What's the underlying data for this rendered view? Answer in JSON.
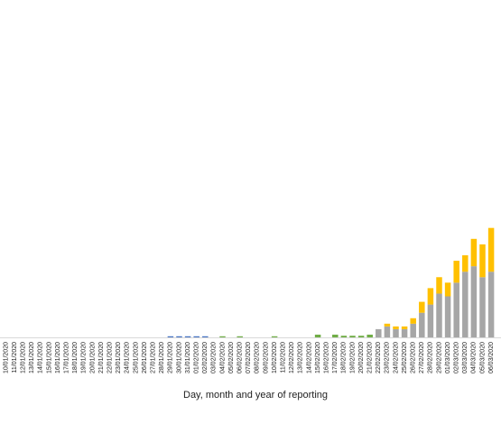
{
  "chart_data": {
    "type": "bar",
    "stacked": true,
    "xlabel": "Day, month and year of reporting",
    "ylabel": "",
    "ylim": [
      0,
      60
    ],
    "grid": false,
    "legend": "none",
    "categories": [
      "10/01/2020",
      "11/01/2020",
      "12/01/2020",
      "13/01/2020",
      "14/01/2020",
      "15/01/2020",
      "16/01/2020",
      "17/01/2020",
      "18/01/2020",
      "19/01/2020",
      "20/01/2020",
      "21/01/2020",
      "22/01/2020",
      "23/01/2020",
      "24/01/2020",
      "25/01/2020",
      "26/01/2020",
      "27/01/2020",
      "28/01/2020",
      "29/01/2020",
      "30/01/2020",
      "31/01/2020",
      "01/02/2020",
      "02/02/2020",
      "03/02/2020",
      "04/02/2020",
      "05/02/2020",
      "06/02/2020",
      "07/02/2020",
      "08/02/2020",
      "09/02/2020",
      "10/02/2020",
      "11/02/2020",
      "12/02/2020",
      "13/02/2020",
      "14/02/2020",
      "15/02/2020",
      "16/02/2020",
      "17/02/2020",
      "18/02/2020",
      "19/02/2020",
      "20/02/2020",
      "21/02/2020",
      "22/02/2020",
      "23/02/2020",
      "24/02/2020",
      "25/02/2020",
      "26/02/2020",
      "27/02/2020",
      "28/02/2020",
      "29/02/2020",
      "01/03/2020",
      "02/03/2020",
      "03/03/2020",
      "04/03/2020",
      "05/03/2020",
      "06/03/2020"
    ],
    "series": [
      {
        "color": "#a6a6a6",
        "values": [
          0,
          0,
          0,
          0,
          0,
          0,
          0,
          0,
          0,
          0,
          0,
          0,
          0,
          0,
          0,
          0,
          0,
          0,
          0,
          0,
          0,
          0,
          0,
          0,
          0,
          0,
          0,
          0,
          0,
          0,
          0,
          0,
          0,
          0,
          0,
          0,
          0,
          0,
          0,
          0,
          0,
          0,
          0,
          1.5,
          2,
          1.5,
          1.5,
          2.5,
          4.5,
          6,
          8,
          7.5,
          10,
          12,
          13,
          11,
          12
        ]
      },
      {
        "color": "#ffc000",
        "values": [
          0,
          0,
          0,
          0,
          0,
          0,
          0,
          0,
          0,
          0,
          0,
          0,
          0,
          0,
          0,
          0,
          0,
          0,
          0,
          0,
          0,
          0,
          0,
          0,
          0,
          0,
          0,
          0,
          0,
          0,
          0,
          0,
          0,
          0,
          0,
          0,
          0,
          0,
          0,
          0,
          0,
          0,
          0,
          0,
          0.5,
          0.5,
          0.5,
          1,
          2,
          3,
          3,
          2.5,
          4,
          3,
          5,
          6,
          8
        ]
      },
      {
        "color": "#70ad47",
        "values": [
          0,
          0,
          0,
          0,
          0,
          0,
          0,
          0,
          0,
          0,
          0,
          0,
          0,
          0,
          0,
          0,
          0,
          0,
          0,
          0,
          0,
          0,
          0,
          0,
          0,
          0.2,
          0,
          0.2,
          0,
          0,
          0,
          0.2,
          0,
          0,
          0,
          0,
          0.5,
          0,
          0.5,
          0.3,
          0.3,
          0.3,
          0.5,
          0,
          0,
          0,
          0,
          0,
          0,
          0,
          0,
          0,
          0,
          0,
          0,
          0,
          0
        ]
      },
      {
        "color": "#4472c4",
        "values": [
          0,
          0,
          0,
          0,
          0,
          0,
          0,
          0,
          0,
          0,
          0,
          0,
          0,
          0,
          0,
          0,
          0,
          0,
          0,
          0.2,
          0.2,
          0.2,
          0.2,
          0.2,
          0,
          0,
          0,
          0,
          0,
          0,
          0,
          0,
          0,
          0,
          0,
          0,
          0,
          0,
          0,
          0,
          0,
          0,
          0,
          0,
          0,
          0,
          0,
          0,
          0,
          0,
          0,
          0,
          0,
          0,
          0,
          0,
          0
        ]
      }
    ]
  }
}
